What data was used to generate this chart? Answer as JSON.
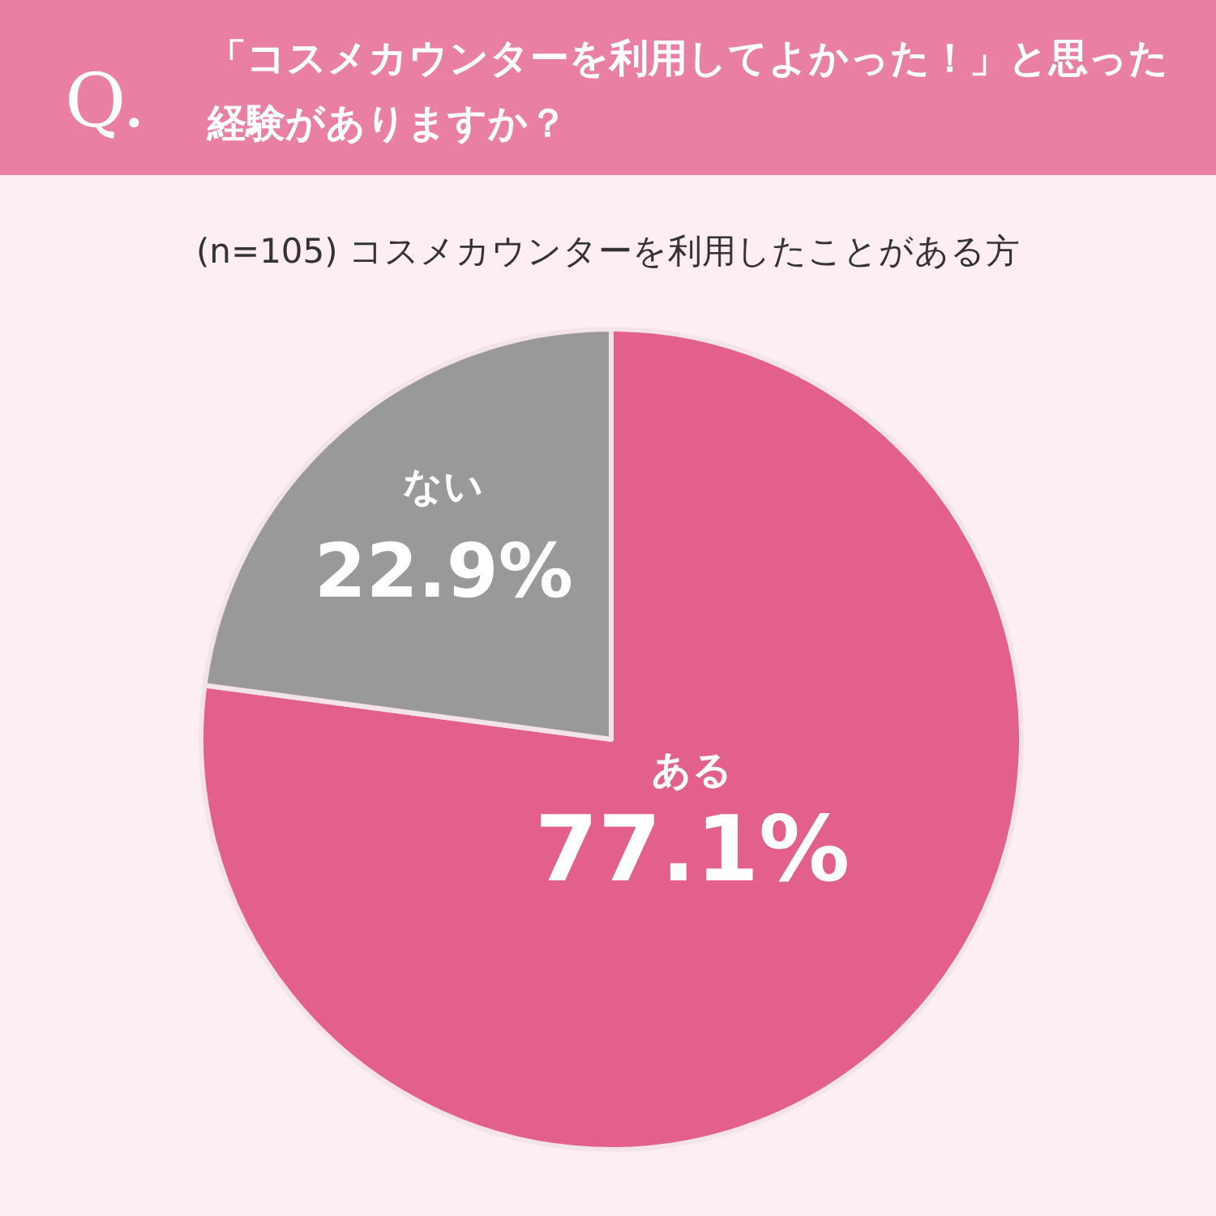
{
  "chart_data": {
    "type": "pie",
    "title": "「コスメカウンターを利用してよかった！」と思った経験がありますか？",
    "subtitle": "(n=105) コスメカウンターを利用したことがある方",
    "annotations": [
      "Q."
    ],
    "categories": [
      "ある",
      "ない"
    ],
    "values": [
      77.1,
      22.9
    ],
    "colors": [
      "#e2608a",
      "#999999"
    ],
    "value_labels": [
      "77.1%",
      "22.9%"
    ]
  }
}
